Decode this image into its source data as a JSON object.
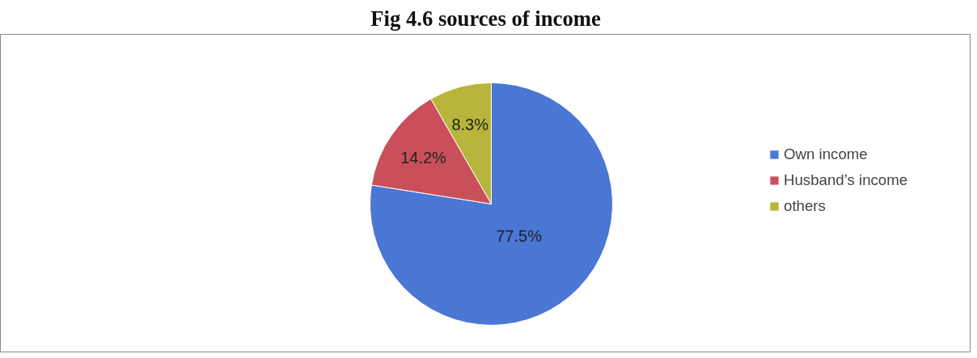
{
  "chart_data": {
    "type": "pie",
    "title": "Fig 4.6 sources of income",
    "categories": [
      "Own income",
      "Husband’s income",
      "others"
    ],
    "values": [
      77.5,
      14.2,
      8.3
    ],
    "colors": [
      "#4a76d4",
      "#c9505a",
      "#b8b43c"
    ],
    "value_labels": [
      "77.5%",
      "14.2%",
      "8.3%"
    ],
    "legend": "right"
  }
}
